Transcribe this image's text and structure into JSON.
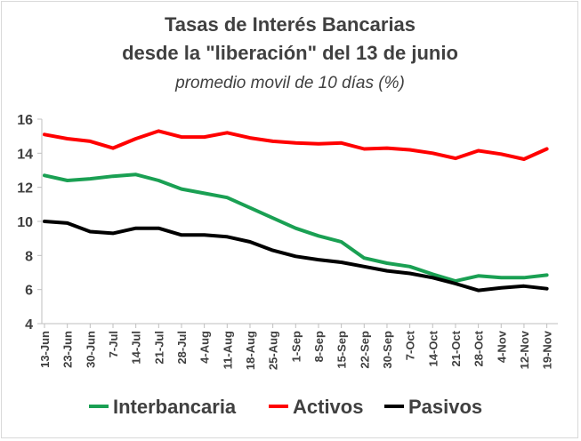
{
  "chart_data": {
    "type": "line",
    "title": "Tasas de Interés Bancarias",
    "subtitle": "desde la \"liberación\" del 13 de junio",
    "subtitle2": "promedio movil de 10 días (%)",
    "xlabel": "",
    "ylabel": "",
    "ylim": [
      4,
      16
    ],
    "yticks": [
      "4",
      "6",
      "8",
      "10",
      "12",
      "14",
      "16"
    ],
    "grid": false,
    "legend_position": "bottom",
    "x": [
      "13-Jun",
      "23-Jun",
      "30-Jun",
      "7-Jul",
      "14-Jul",
      "21-Jul",
      "28-Jul",
      "4-Aug",
      "11-Aug",
      "18-Aug",
      "25-Aug",
      "1-Sep",
      "8-Sep",
      "15-Sep",
      "22-Sep",
      "30-Sep",
      "7-Oct",
      "14-Oct",
      "21-Oct",
      "28-Oct",
      "4-Nov",
      "12-Nov",
      "19-Nov"
    ],
    "series": [
      {
        "name": "Interbancaria",
        "color": "#1aa053",
        "values": [
          12.7,
          12.4,
          12.5,
          12.65,
          12.75,
          12.4,
          11.9,
          11.65,
          11.4,
          10.8,
          10.2,
          9.6,
          9.15,
          8.8,
          7.85,
          7.55,
          7.35,
          6.9,
          6.5,
          6.8,
          6.7,
          6.7,
          6.85
        ]
      },
      {
        "name": "Activos",
        "color": "#ff0000",
        "values": [
          15.1,
          14.85,
          14.7,
          14.3,
          14.85,
          15.3,
          14.95,
          14.95,
          15.2,
          14.9,
          14.7,
          14.6,
          14.55,
          14.6,
          14.25,
          14.3,
          14.2,
          14.0,
          13.7,
          14.15,
          13.95,
          13.65,
          14.25
        ]
      },
      {
        "name": "Pasivos",
        "color": "#000000",
        "values": [
          10.0,
          9.9,
          9.4,
          9.3,
          9.6,
          9.6,
          9.2,
          9.2,
          9.1,
          8.8,
          8.3,
          7.95,
          7.75,
          7.6,
          7.35,
          7.1,
          6.95,
          6.7,
          6.35,
          5.95,
          6.1,
          6.2,
          6.05
        ]
      }
    ]
  }
}
